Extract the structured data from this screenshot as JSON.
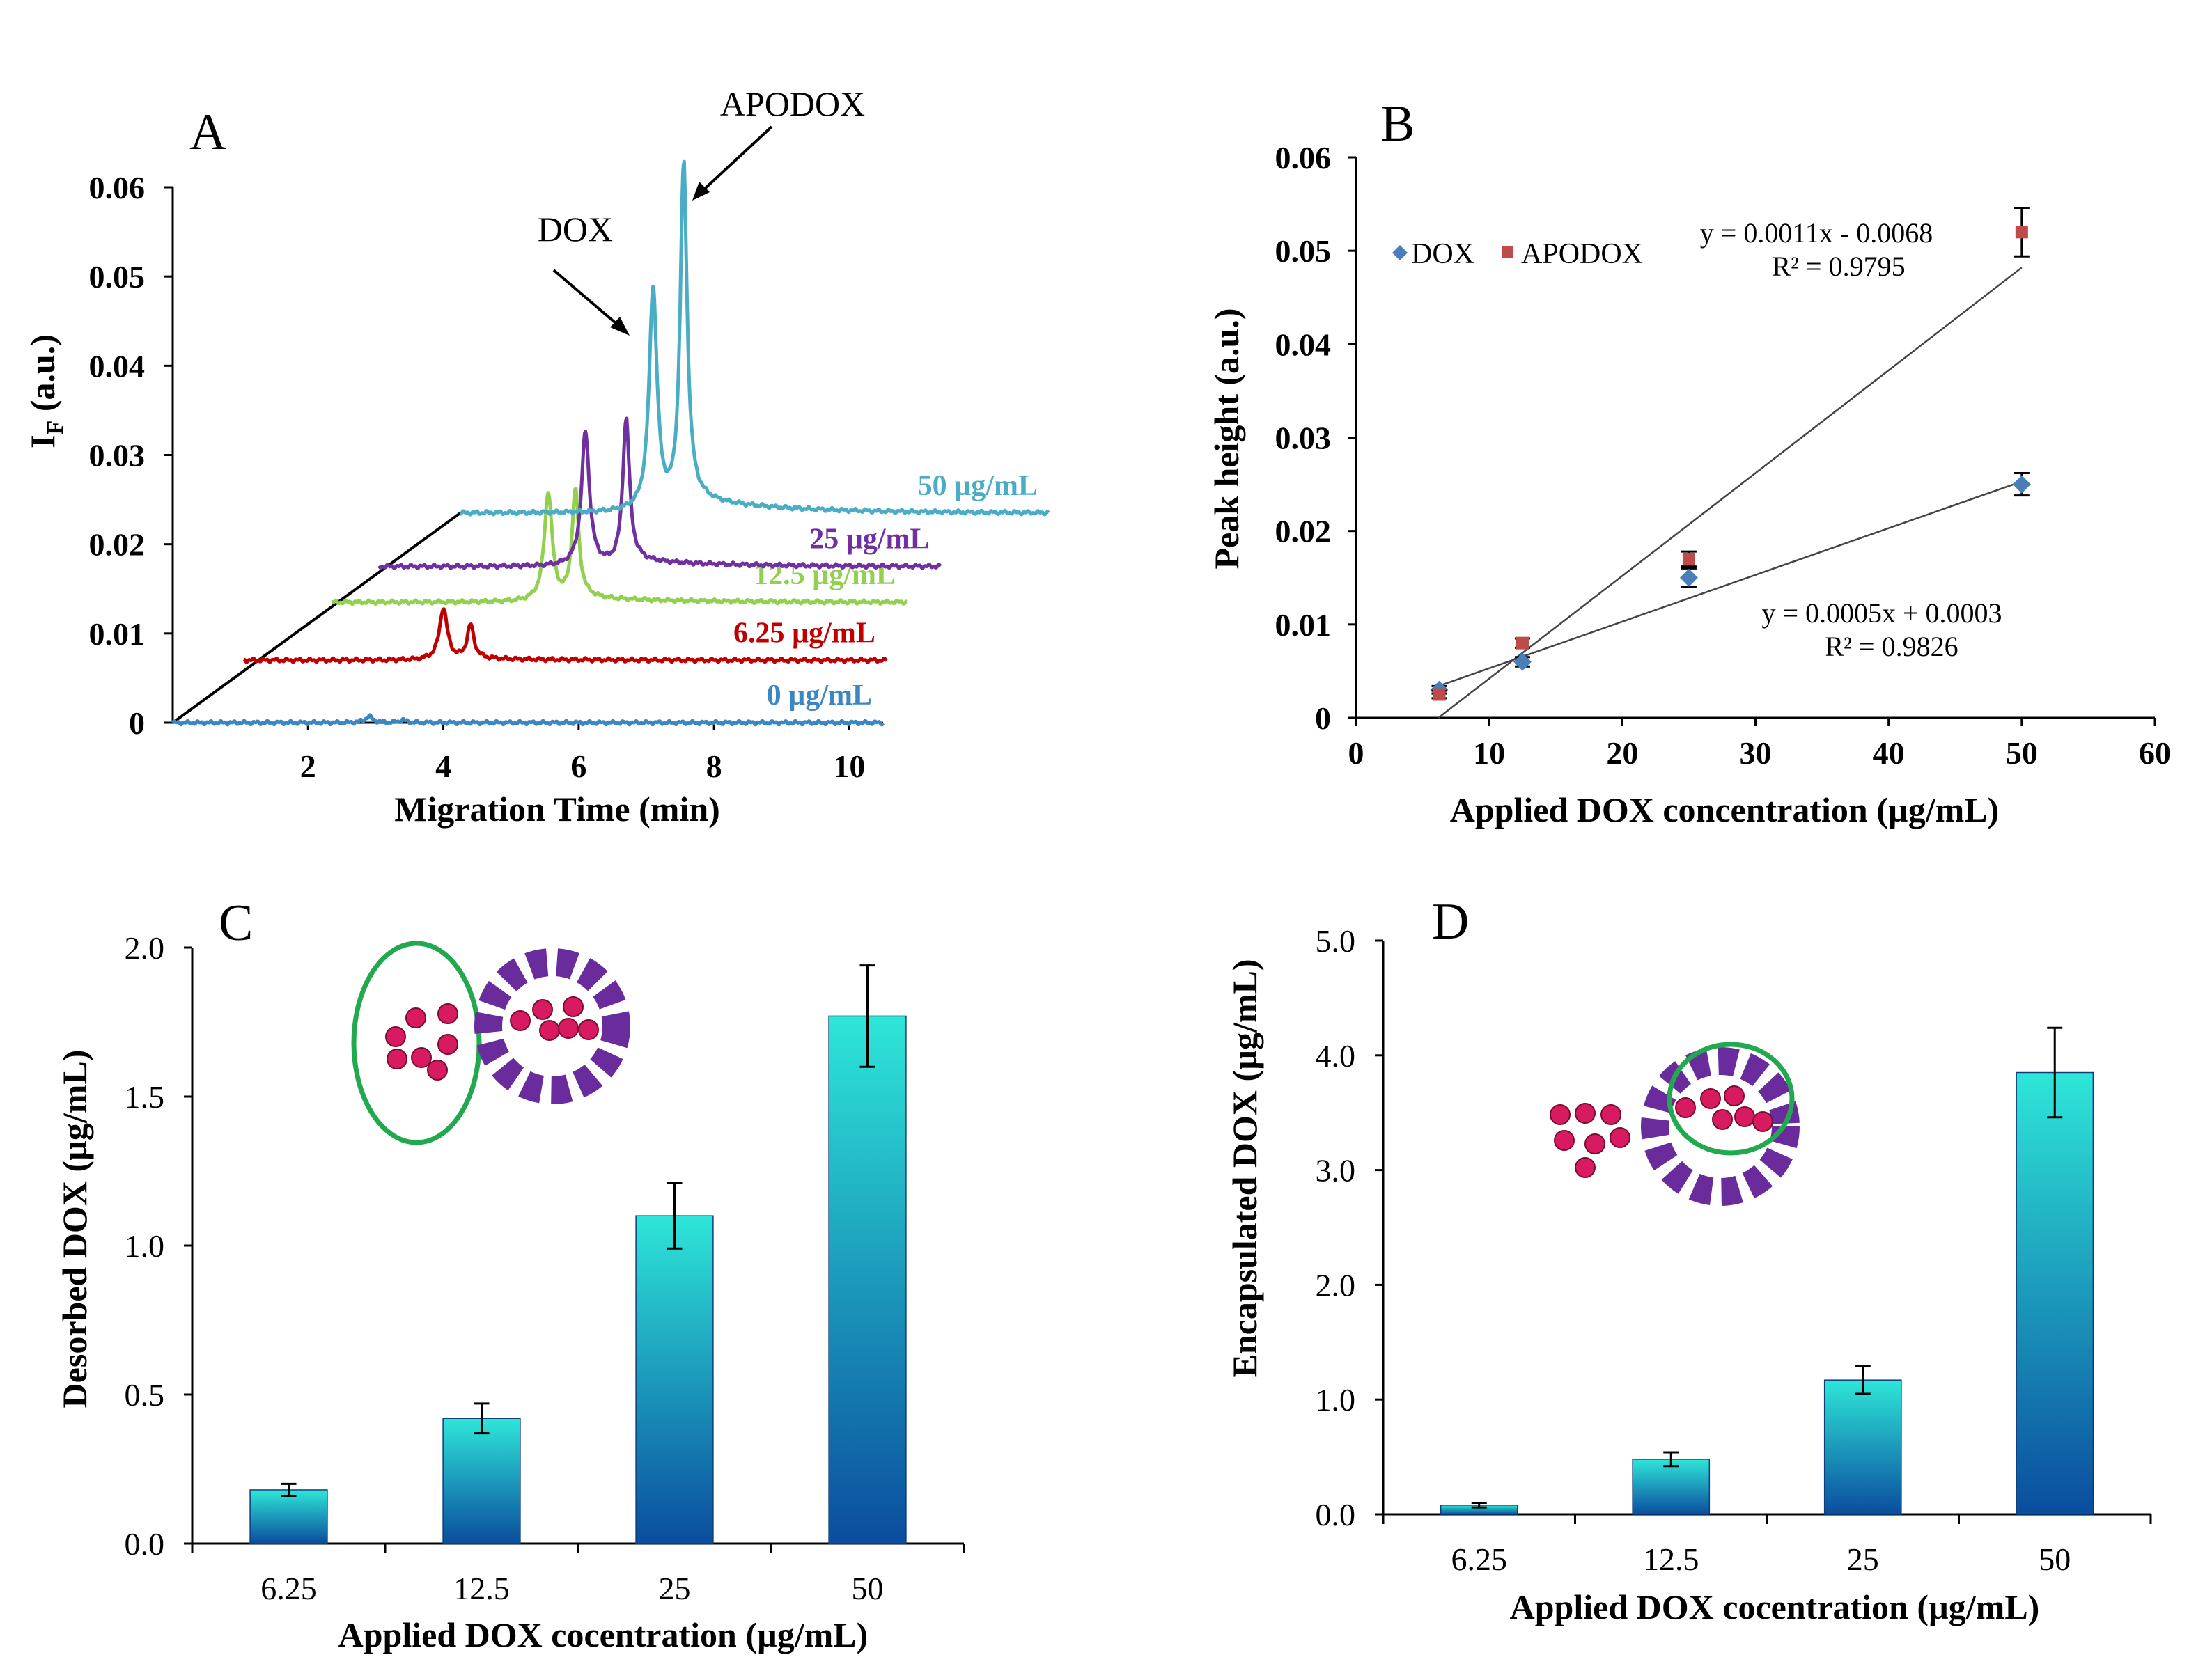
{
  "panels": {
    "A": {
      "letter": "A"
    },
    "B": {
      "letter": "B"
    },
    "C": {
      "letter": "C"
    },
    "D": {
      "letter": "D"
    }
  },
  "colors": {
    "trace_0": "#3a87c4",
    "trace_6_25": "#c00000",
    "trace_12_5": "#92d050",
    "trace_25": "#7030a0",
    "trace_50": "#4bacc6",
    "dox_marker": "#4a7ebb",
    "apodox_marker": "#be4b48",
    "bar_top": "#2ee6d8",
    "bar_bottom": "#0a4d9e",
    "drug_dot": "#d81b60",
    "circle": "#22a94f",
    "liposome": "#6a2c9c"
  },
  "chart_data": [
    {
      "panel": "A",
      "type": "line",
      "title": "",
      "xlabel": "Migration Time (min)",
      "ylabel_main": "I",
      "ylabel_sub": "F",
      "ylabel_rest": " (a.u.)",
      "xlim": [
        0,
        10.5
      ],
      "ylim": [
        0,
        0.06
      ],
      "x_ticks": [
        "2",
        "4",
        "6",
        "8",
        "10"
      ],
      "y_ticks": [
        "0",
        "0.01",
        "0.02",
        "0.03",
        "0.04",
        "0.05",
        "0.06"
      ],
      "series": [
        {
          "name": "0 µg/mL",
          "offset": [
            0.0,
            0.0
          ],
          "x_start": 0.0,
          "x_end": 10.5,
          "dox_peak": [
            2.9,
            0.0007
          ],
          "apodox_peak": [
            3.4,
            0.0003
          ]
        },
        {
          "name": "6.25 µg/mL",
          "offset": [
            1.05,
            0.007
          ],
          "x_start": 0.0,
          "x_end": 9.5,
          "dox_peak": [
            2.95,
            0.0058
          ],
          "apodox_peak": [
            3.35,
            0.0038
          ]
        },
        {
          "name": "12.5 µg/mL",
          "offset": [
            2.35,
            0.0135
          ],
          "x_start": 0.0,
          "x_end": 8.5,
          "dox_peak": [
            3.2,
            0.0122
          ],
          "apodox_peak": [
            3.6,
            0.0122
          ]
        },
        {
          "name": "25 µg/mL",
          "offset": [
            3.05,
            0.0175
          ],
          "x_start": 0.0,
          "x_end": 8.3,
          "dox_peak": [
            3.05,
            0.015
          ],
          "apodox_peak": [
            3.65,
            0.0162
          ]
        },
        {
          "name": "50 µg/mL",
          "offset": [
            4.25,
            0.0235
          ],
          "x_start": 0.0,
          "x_end": 8.7,
          "dox_peak": [
            2.85,
            0.0249
          ],
          "apodox_peak": [
            3.3,
            0.0383
          ]
        }
      ],
      "annotations": {
        "dox": "DOX",
        "apodox": "APODOX"
      }
    },
    {
      "panel": "B",
      "type": "scatter",
      "title": "",
      "xlabel": "Applied DOX concentration (µg/mL)",
      "ylabel": "Peak height (a.u.)",
      "xlim": [
        0,
        60
      ],
      "ylim": [
        0,
        0.06
      ],
      "x_ticks": [
        "0",
        "10",
        "20",
        "30",
        "40",
        "50",
        "60"
      ],
      "y_ticks": [
        "0",
        "0.01",
        "0.02",
        "0.03",
        "0.04",
        "0.05",
        "0.06"
      ],
      "series": [
        {
          "name": "DOX",
          "x": [
            6.25,
            12.5,
            25,
            50
          ],
          "y": [
            0.003,
            0.006,
            0.015,
            0.025
          ],
          "err": [
            0.0004,
            0.0005,
            0.001,
            0.0012
          ]
        },
        {
          "name": "APODOX",
          "x": [
            6.25,
            12.5,
            25,
            50
          ],
          "y": [
            0.0025,
            0.008,
            0.017,
            0.052
          ],
          "err": [
            0.0004,
            0.0005,
            0.0008,
            0.0026
          ]
        }
      ],
      "fits": [
        {
          "series": "APODOX",
          "slope": 0.0011,
          "intercept": -0.0068,
          "equation": "y = 0.0011x - 0.0068",
          "r2": "R² = 0.9795"
        },
        {
          "series": "DOX",
          "slope": 0.0005,
          "intercept": 0.0003,
          "equation": "y = 0.0005x + 0.0003",
          "r2": "R² = 0.9826"
        }
      ],
      "legend": [
        "DOX",
        "APODOX"
      ]
    },
    {
      "panel": "C",
      "type": "bar",
      "title": "",
      "xlabel": "Applied DOX cocentration (µg/mL)",
      "ylabel": "Desorbed DOX (µg/mL)",
      "categories": [
        "6.25",
        "12.5",
        "25",
        "50"
      ],
      "values": [
        0.18,
        0.42,
        1.1,
        1.77
      ],
      "errors": [
        0.02,
        0.05,
        0.11,
        0.17
      ],
      "ylim": [
        0,
        2.0
      ],
      "y_ticks": [
        "0.0",
        "0.5",
        "1.0",
        "1.5",
        "2.0"
      ]
    },
    {
      "panel": "D",
      "type": "bar",
      "title": "",
      "xlabel": "Applied DOX cocentration (µg/mL)",
      "ylabel": "Encapsulated DOX (µg/mL)",
      "categories": [
        "6.25",
        "12.5",
        "25",
        "50"
      ],
      "values": [
        0.08,
        0.48,
        1.17,
        3.85
      ],
      "errors": [
        0.02,
        0.06,
        0.12,
        0.39
      ],
      "ylim": [
        0,
        5.0
      ],
      "y_ticks": [
        "0.0",
        "1.0",
        "2.0",
        "3.0",
        "4.0",
        "5.0"
      ]
    }
  ]
}
